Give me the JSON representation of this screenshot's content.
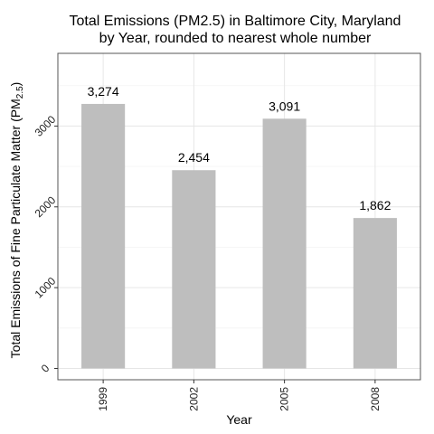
{
  "chart_data": {
    "type": "bar",
    "title": [
      "Total Emissions (PM2.5) in Baltimore City, Maryland",
      "by Year, rounded to nearest whole number"
    ],
    "xlabel": "Year",
    "ylabel": "Total Emissions of Fine Particulate Matter (PM",
    "ylabel_subscript": "2.5",
    "ylabel_suffix": ")",
    "categories": [
      "1999",
      "2002",
      "2005",
      "2008"
    ],
    "values": [
      3274,
      2454,
      3091,
      1862
    ],
    "data_labels": [
      "3,274",
      "2,454",
      "3,091",
      "1,862"
    ],
    "yticks": [
      0,
      1000,
      2000,
      3000
    ],
    "ylim": [
      -140,
      3900
    ],
    "grid": true,
    "colors": {
      "bar": "#bebebe",
      "grid_major": "#e6e6e6",
      "grid_minor": "#f4f4f4",
      "panel_border": "#555555"
    }
  }
}
